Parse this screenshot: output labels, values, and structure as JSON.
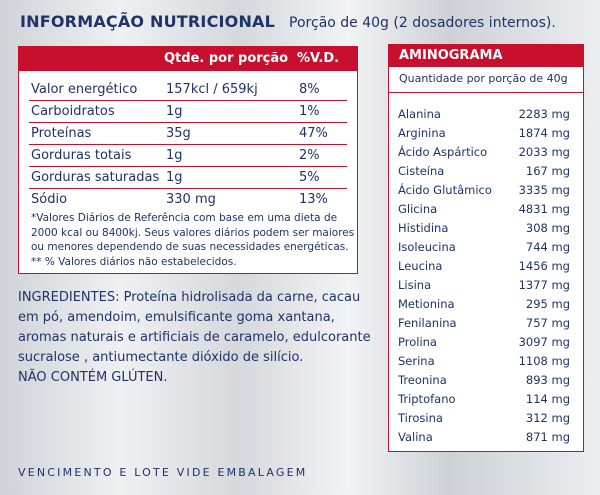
{
  "header": {
    "title": "INFORMAÇÃO NUTRICIONAL",
    "portion": "Porção de 40g (2 dosadores internos)."
  },
  "nutrition": {
    "col_qty": "Qtde. por porção",
    "col_vd": "%V.D.",
    "rows": [
      {
        "name": "Valor energético",
        "qty": "157kcl / 659kj",
        "vd": "8%"
      },
      {
        "name": "Carboidratos",
        "qty": "1g",
        "vd": "1%"
      },
      {
        "name": "Proteínas",
        "qty": "35g",
        "vd": "47%"
      },
      {
        "name": "Gorduras totais",
        "qty": "1g",
        "vd": "2%"
      },
      {
        "name": "Gorduras saturadas",
        "qty": "1g",
        "vd": "5%"
      },
      {
        "name": "Sódio",
        "qty": "330 mg",
        "vd": "13%"
      }
    ],
    "notes": [
      "*Valores Diários de Referência com base em uma dieta de",
      "2000 kcal ou 8400kj. Seus valores diários podem ser maiores",
      "ou menores dependendo de suas necessidades energéticas.",
      "** % Valores diários não estabelecidos."
    ]
  },
  "ingredients": {
    "lines": [
      "INGREDIENTES:  Proteína hidrolisada da carne, cacau",
      "em pó, amendoim, emulsificante goma xantana,",
      "aromas naturais e artificiais de caramelo, edulcorante",
      "sucralose , antiumectante dióxido de silício.",
      "NÃO CONTÉM GLÚTEN."
    ]
  },
  "footer": {
    "expiry": "VENCIMENTO E LOTE VIDE EMBALAGEM"
  },
  "amino": {
    "title": "AMINOGRAMA",
    "subtitle": "Quantidade por porção de 40g",
    "items": [
      {
        "name": "Alanina",
        "value": "2283 mg"
      },
      {
        "name": "Arginina",
        "value": "1874 mg"
      },
      {
        "name": "Ácido Aspártico",
        "value": "2033 mg"
      },
      {
        "name": "Cisteína",
        "value": "167 mg"
      },
      {
        "name": "Ácido Glutâmico",
        "value": "3335 mg"
      },
      {
        "name": "Glicina",
        "value": "4831 mg"
      },
      {
        "name": "Histidina",
        "value": "308 mg"
      },
      {
        "name": "Isoleucina",
        "value": "744 mg"
      },
      {
        "name": "Leucina",
        "value": "1456 mg"
      },
      {
        "name": "Lisina",
        "value": "1377 mg"
      },
      {
        "name": "Metionina",
        "value": "295 mg"
      },
      {
        "name": "Fenilanina",
        "value": "757 mg"
      },
      {
        "name": "Prolina",
        "value": "3097 mg"
      },
      {
        "name": "Serina",
        "value": "1108 mg"
      },
      {
        "name": "Treonina",
        "value": "893 mg"
      },
      {
        "name": "Triptofano",
        "value": "114 mg"
      },
      {
        "name": "Tirosina",
        "value": "312 mg"
      },
      {
        "name": "Valina",
        "value": "871 mg"
      }
    ]
  },
  "colors": {
    "red": "#c8102e",
    "navy": "#1f3368"
  }
}
